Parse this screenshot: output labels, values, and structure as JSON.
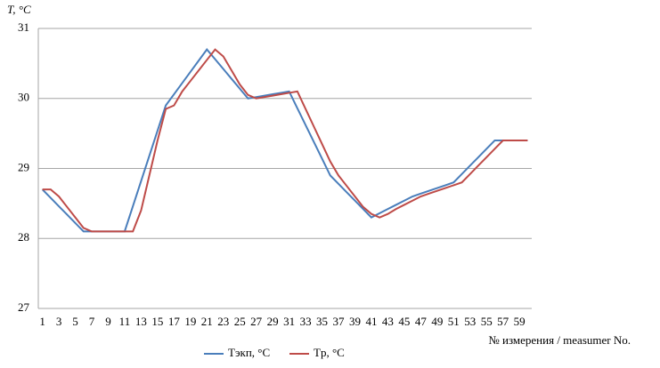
{
  "chart_data": {
    "type": "line",
    "y_label": "T, °C",
    "x_label": "№ измерения / measumer No.",
    "categories": [
      "1",
      null,
      "3",
      null,
      "5",
      null,
      "7",
      null,
      "9",
      null,
      "11",
      null,
      "13",
      null,
      "15",
      null,
      "17",
      null,
      "19",
      null,
      "21",
      null,
      "23",
      null,
      "25",
      null,
      "27",
      null,
      "29",
      null,
      "31",
      null,
      "33",
      null,
      "35",
      null,
      "37",
      null,
      "39",
      null,
      "41",
      null,
      "43",
      null,
      "45",
      null,
      "47",
      null,
      "49",
      null,
      "51",
      null,
      "53",
      null,
      "55",
      null,
      "57",
      null,
      "59",
      null
    ],
    "series": [
      {
        "name": "Tэкп, °C",
        "color": "#4a7ebb",
        "values": [
          28.7,
          28.58,
          28.46,
          28.34,
          28.22,
          28.1,
          28.1,
          28.1,
          28.1,
          28.1,
          28.1,
          28.46,
          28.82,
          29.18,
          29.54,
          29.9,
          30.06,
          30.22,
          30.38,
          30.54,
          30.7,
          30.56,
          30.42,
          30.28,
          30.14,
          30.0,
          30.02,
          30.04,
          30.06,
          30.08,
          30.1,
          29.86,
          29.62,
          29.38,
          29.14,
          28.9,
          28.78,
          28.66,
          28.54,
          28.42,
          28.3,
          28.36,
          28.42,
          28.48,
          28.54,
          28.6,
          28.64,
          28.68,
          28.72,
          28.76,
          28.8,
          28.92,
          29.04,
          29.16,
          29.28,
          29.4,
          29.4,
          29.4,
          29.4,
          29.4
        ]
      },
      {
        "name": "Tp, °C",
        "color": "#be4b48",
        "values": [
          28.7,
          28.7,
          28.6,
          28.45,
          28.3,
          28.15,
          28.1,
          28.1,
          28.1,
          28.1,
          28.1,
          28.1,
          28.4,
          28.9,
          29.4,
          29.85,
          29.9,
          30.1,
          30.25,
          30.4,
          30.55,
          30.7,
          30.6,
          30.4,
          30.2,
          30.05,
          30.0,
          30.02,
          30.04,
          30.06,
          30.08,
          30.1,
          29.85,
          29.6,
          29.35,
          29.1,
          28.9,
          28.75,
          28.6,
          28.45,
          28.35,
          28.3,
          28.35,
          28.42,
          28.48,
          28.54,
          28.6,
          28.64,
          28.68,
          28.72,
          28.76,
          28.8,
          28.92,
          29.04,
          29.16,
          29.28,
          29.4,
          29.4,
          29.4,
          29.4
        ]
      }
    ],
    "ylim": [
      27,
      31
    ],
    "yticks": [
      27,
      28,
      29,
      30,
      31
    ],
    "grid": true
  }
}
